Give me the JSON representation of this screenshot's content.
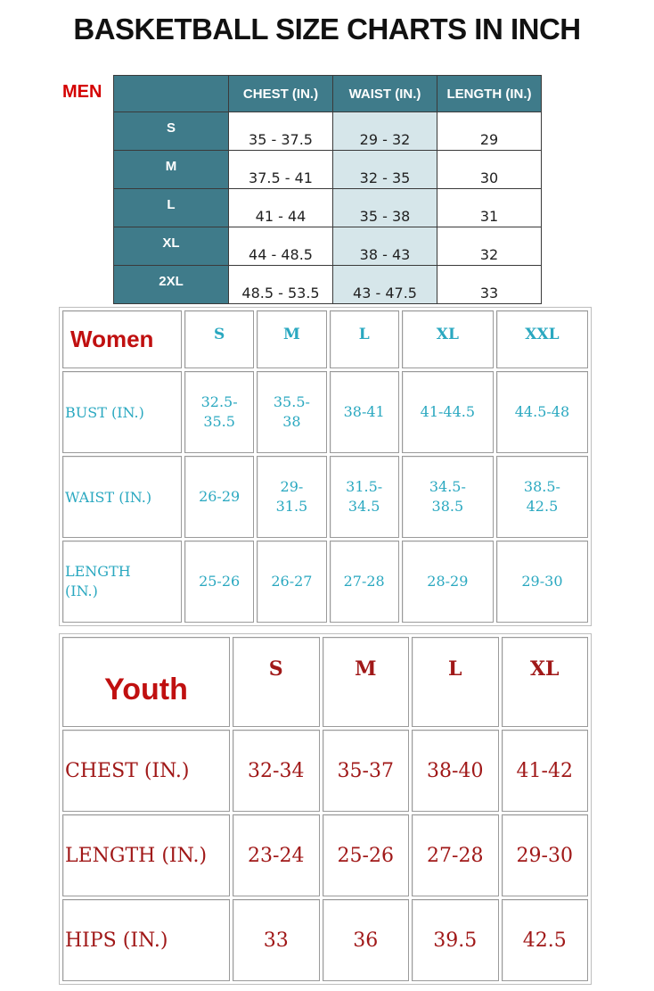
{
  "title": "BASKETBALL SIZE CHARTS IN INCH",
  "men": {
    "label": "MEN",
    "headers": [
      "CHEST (IN.)",
      "WAIST (IN.)",
      "LENGTH (IN.)"
    ],
    "rows": [
      {
        "size": "S",
        "chest": "35 - 37.5",
        "waist": "29 - 32",
        "length": "29"
      },
      {
        "size": "M",
        "chest": "37.5 - 41",
        "waist": "32 - 35",
        "length": "30"
      },
      {
        "size": "L",
        "chest": "41 - 44",
        "waist": "35 - 38",
        "length": "31"
      },
      {
        "size": "XL",
        "chest": "44 - 48.5",
        "waist": "38 - 43",
        "length": "32"
      },
      {
        "size": "2XL",
        "chest": "48.5 - 53.5",
        "waist": "43 - 47.5",
        "length": "33"
      }
    ]
  },
  "women": {
    "label": "Women",
    "sizes": [
      "S",
      "M",
      "L",
      "XL",
      "XXL"
    ],
    "rows": [
      {
        "label": "BUST (IN.)",
        "values": [
          "32.5-\n35.5",
          "35.5-\n38",
          "38-41",
          "41-44.5",
          "44.5-48"
        ]
      },
      {
        "label": "WAIST (IN.)",
        "values": [
          "26-29",
          "29-\n31.5",
          "31.5-\n34.5",
          "34.5-\n38.5",
          "38.5-\n42.5"
        ]
      },
      {
        "label": "LENGTH\n(IN.)",
        "values": [
          "25-26",
          "26-27",
          "27-28",
          "28-29",
          "29-30"
        ]
      }
    ]
  },
  "youth": {
    "label": "Youth",
    "sizes": [
      "S",
      "M",
      "L",
      "XL"
    ],
    "rows": [
      {
        "label": "CHEST (IN.)",
        "values": [
          "32-34",
          "35-37",
          "38-40",
          "41-42"
        ]
      },
      {
        "label": "LENGTH (IN.)",
        "values": [
          "23-24",
          "25-26",
          "27-28",
          "29-30"
        ]
      },
      {
        "label": "HIPS (IN.)",
        "values": [
          "33",
          "36",
          "39.5",
          "42.5"
        ]
      }
    ]
  },
  "colors": {
    "teal_header": "#3f7b8a",
    "waist_shade": "#d6e6ea",
    "men_label": "#d40000",
    "women_text": "#2aa8c0",
    "youth_text": "#a01818"
  }
}
